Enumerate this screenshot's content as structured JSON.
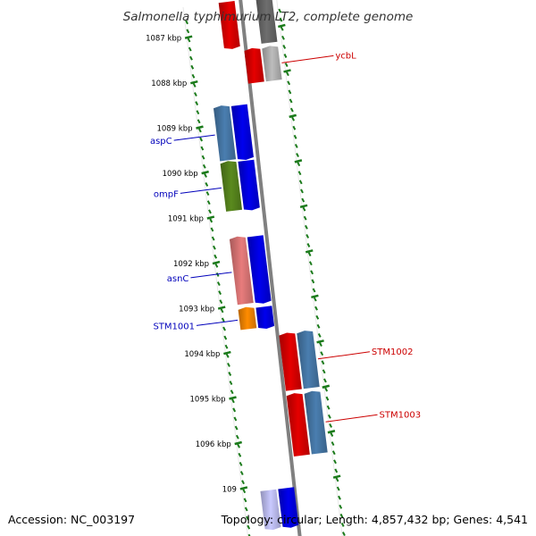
{
  "title": "Salmonella typhimurium LT2, complete genome",
  "footer": {
    "accession": "Accession: NC_003197",
    "topology": "Topology: circular; Length: 4,857,432 bp; Genes: 4,541"
  },
  "ticks": [
    {
      "label": "1087 kbp",
      "fraction": 0.01
    },
    {
      "label": "1088 kbp",
      "fraction": 0.0995
    },
    {
      "label": "1089 kbp",
      "fraction": 0.189
    },
    {
      "label": "1090 kbp",
      "fraction": 0.2785
    },
    {
      "label": "1091 kbp",
      "fraction": 0.368
    },
    {
      "label": "1092 kbp",
      "fraction": 0.4575
    },
    {
      "label": "1093 kbp",
      "fraction": 0.547
    },
    {
      "label": "1094 kbp",
      "fraction": 0.6365
    },
    {
      "label": "1095 kbp",
      "fraction": 0.726
    },
    {
      "label": "1096 kbp",
      "fraction": 0.8155
    },
    {
      "label": "109",
      "fraction": 0.905
    }
  ],
  "genes": [
    {
      "name": "",
      "strand": "+",
      "color": "#e50000",
      "start": -0.05,
      "end": 0.04,
      "track": "inner"
    },
    {
      "name": "",
      "strand": "-",
      "color": "#6e6e6e",
      "start": -0.05,
      "end": 0.04,
      "track": "outer"
    },
    {
      "name": "",
      "strand": "-",
      "color": "#e50000",
      "start": 0.05,
      "end": 0.115,
      "track": "inner"
    },
    {
      "name": "ycbL",
      "strand": "-",
      "color": "#bdbdbd",
      "start": 0.05,
      "end": 0.115,
      "track": "outer",
      "label_side": "right",
      "label_color": "#cc0000"
    },
    {
      "name": "aspC",
      "strand": "-",
      "color": "#4a7eb0",
      "start": 0.155,
      "end": 0.26,
      "track": "outer",
      "label_side": "left",
      "label_color": "#0000bb"
    },
    {
      "name": "",
      "strand": "+",
      "color": "#0000ee",
      "start": 0.155,
      "end": 0.26,
      "track": "inner"
    },
    {
      "name": "ompF",
      "strand": "-",
      "color": "#5a8a1e",
      "start": 0.265,
      "end": 0.36,
      "track": "outer",
      "label_side": "left",
      "label_color": "#0000bb"
    },
    {
      "name": "",
      "strand": "+",
      "color": "#0000ee",
      "start": 0.265,
      "end": 0.36,
      "track": "inner"
    },
    {
      "name": "asnC",
      "strand": "-",
      "color": "#e87c7c",
      "start": 0.415,
      "end": 0.545,
      "track": "outer",
      "label_side": "left",
      "label_color": "#0000bb"
    },
    {
      "name": "",
      "strand": "+",
      "color": "#0000ee",
      "start": 0.415,
      "end": 0.545,
      "track": "inner"
    },
    {
      "name": "STM1001",
      "strand": "-",
      "color": "#ff8c00",
      "start": 0.555,
      "end": 0.595,
      "track": "outer",
      "label_side": "left",
      "label_color": "#0000bb"
    },
    {
      "name": "",
      "strand": "+",
      "color": "#0000ee",
      "start": 0.555,
      "end": 0.595,
      "track": "inner"
    },
    {
      "name": "",
      "strand": "-",
      "color": "#e50000",
      "start": 0.615,
      "end": 0.725,
      "track": "inner"
    },
    {
      "name": "STM1002",
      "strand": "-",
      "color": "#4a7eb0",
      "start": 0.615,
      "end": 0.725,
      "track": "outer",
      "label_side": "right",
      "label_color": "#cc0000"
    },
    {
      "name": "",
      "strand": "-",
      "color": "#e50000",
      "start": 0.735,
      "end": 0.855,
      "track": "inner"
    },
    {
      "name": "STM1003",
      "strand": "-",
      "color": "#4a7eb0",
      "start": 0.735,
      "end": 0.855,
      "track": "outer",
      "label_side": "right",
      "label_color": "#cc0000"
    },
    {
      "name": "",
      "strand": "+",
      "color": "#c9c9ff",
      "start": 0.915,
      "end": 0.99,
      "track": "outer"
    },
    {
      "name": "",
      "strand": "+",
      "color": "#0000ee",
      "start": 0.915,
      "end": 0.99,
      "track": "inner"
    }
  ],
  "colors": {
    "backbone": "#808080",
    "tick_marks": "#1a7a1a",
    "band_border": "#e8e8e8",
    "background": "#ffffff"
  }
}
